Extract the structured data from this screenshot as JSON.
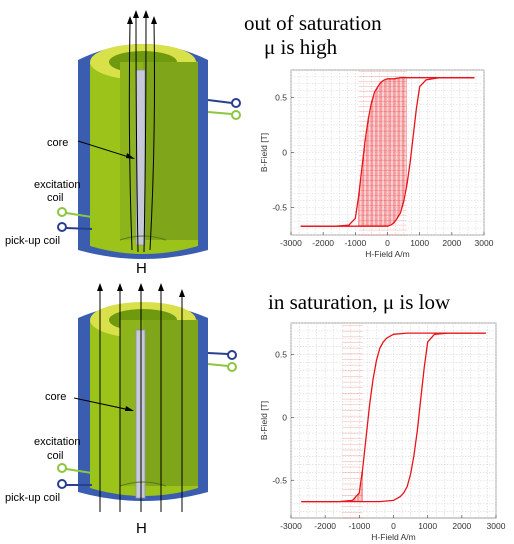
{
  "top_panel": {
    "heading_line1": "out of saturation",
    "heading_line2": "μ is high",
    "labels": {
      "core": "core",
      "excitation_line1": "excitation",
      "excitation_line2": "coil",
      "pickup": "pick-up coil",
      "field": "H"
    }
  },
  "bottom_panel": {
    "heading": "in saturation, μ is low",
    "labels": {
      "core": "core",
      "excitation_line1": "excitation",
      "excitation_line2": "coil",
      "pickup": "pick-up coil",
      "field": "H"
    }
  },
  "colors": {
    "coil_green": "#9bc31a",
    "outer_blue": "#3a5db0",
    "inner_yellow": "#d8e04a",
    "core_grey": "#c7c9d8",
    "curve_red": "#e8141a",
    "terminal_blue": "#2a3f8f",
    "terminal_green": "#8cc63f"
  },
  "chart_data": [
    {
      "type": "line",
      "xlabel": "H-Field A/m",
      "ylabel": "B-Field [T]",
      "xlim": [
        -3000,
        3000
      ],
      "ylim": [
        -0.75,
        0.75
      ],
      "x_ticks": [
        -3000,
        -2000,
        -1000,
        0,
        1000,
        2000,
        3000
      ],
      "y_ticks": [
        0.5,
        0,
        -0.5
      ],
      "grid": true,
      "series": [
        {
          "x": [
            -2700,
            -1600,
            -1200,
            -1000,
            -900,
            -800,
            -700,
            -600,
            -500,
            -400,
            -300,
            -200,
            -100,
            0,
            200,
            400,
            600,
            800,
            1000,
            1500,
            2700
          ],
          "y": [
            -0.67,
            -0.67,
            -0.66,
            -0.6,
            -0.4,
            -0.15,
            0.1,
            0.3,
            0.45,
            0.55,
            0.6,
            0.64,
            0.66,
            0.67,
            0.67,
            0.68,
            0.68,
            0.68,
            0.68,
            0.68,
            0.68
          ]
        },
        {
          "x": [
            2700,
            1600,
            1200,
            1000,
            900,
            800,
            700,
            600,
            500,
            400,
            300,
            200,
            100,
            0,
            -200,
            -400,
            -600,
            -800,
            -1000,
            -1500,
            -2700
          ],
          "y": [
            0.68,
            0.68,
            0.66,
            0.6,
            0.4,
            0.15,
            -0.1,
            -0.3,
            -0.45,
            -0.55,
            -0.6,
            -0.64,
            -0.66,
            -0.67,
            -0.67,
            -0.67,
            -0.67,
            -0.67,
            -0.67,
            -0.67,
            -0.67
          ]
        }
      ],
      "shaded_region_x": [
        -900,
        600
      ]
    },
    {
      "type": "line",
      "xlabel": "H-Field A/m",
      "ylabel": "B-Field [T]",
      "xlim": [
        -3000,
        3000
      ],
      "ylim": [
        -0.8,
        0.75
      ],
      "x_ticks": [
        -3000,
        -2000,
        -1000,
        0,
        1000,
        2000,
        3000
      ],
      "y_ticks": [
        0.5,
        0,
        -0.5
      ],
      "grid": true,
      "series": [
        {
          "x": [
            -2700,
            -1600,
            -1200,
            -1000,
            -900,
            -800,
            -700,
            -600,
            -500,
            -400,
            -300,
            -200,
            0,
            400,
            800,
            1200,
            2700
          ],
          "y": [
            -0.67,
            -0.67,
            -0.66,
            -0.6,
            -0.4,
            -0.15,
            0.1,
            0.3,
            0.45,
            0.55,
            0.6,
            0.63,
            0.66,
            0.67,
            0.67,
            0.67,
            0.67
          ]
        },
        {
          "x": [
            2700,
            1600,
            1200,
            1000,
            900,
            800,
            700,
            600,
            500,
            400,
            300,
            200,
            0,
            -400,
            -800,
            -1200,
            -2700
          ],
          "y": [
            0.67,
            0.67,
            0.66,
            0.6,
            0.4,
            0.15,
            -0.1,
            -0.3,
            -0.45,
            -0.55,
            -0.6,
            -0.63,
            -0.66,
            -0.67,
            -0.67,
            -0.67,
            -0.67
          ]
        }
      ],
      "shaded_region_x": [
        -1500,
        -900
      ]
    }
  ]
}
